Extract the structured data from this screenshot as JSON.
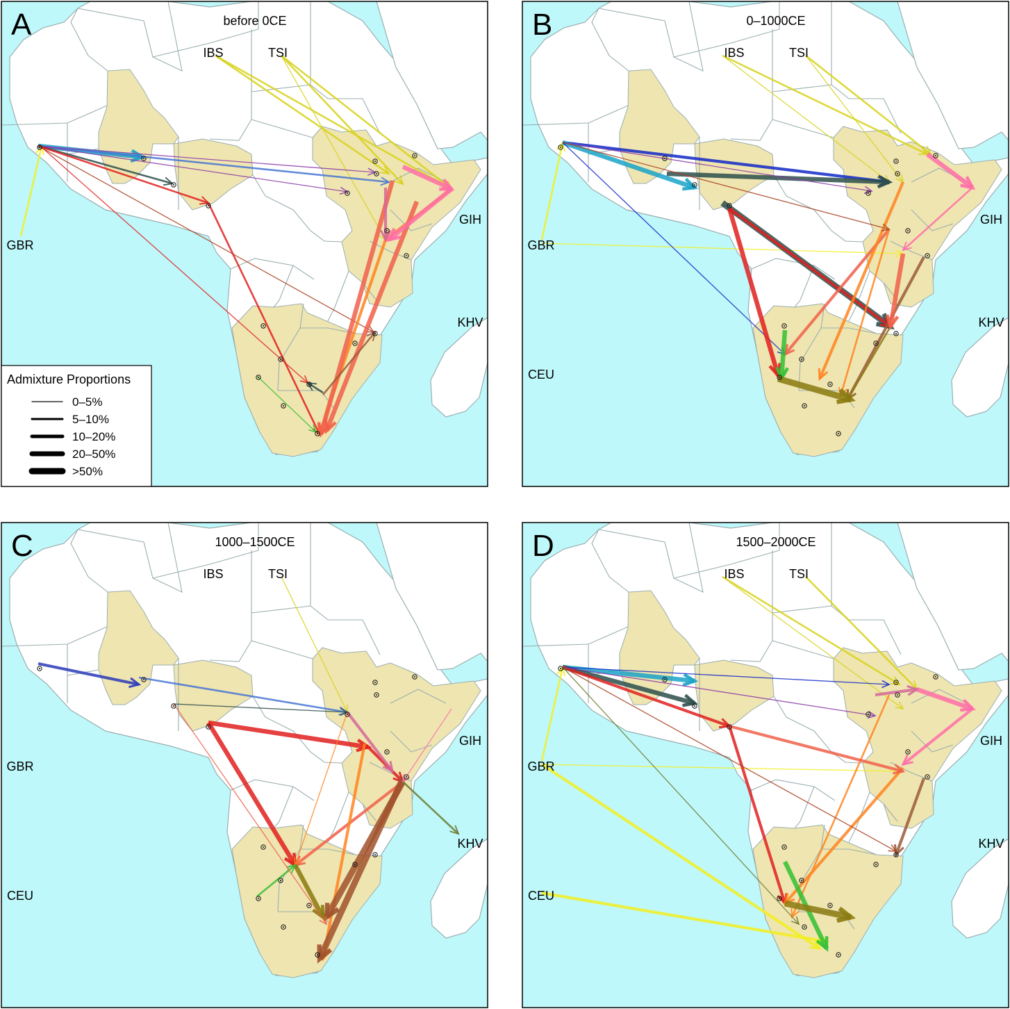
{
  "colors": {
    "sea": "#bff8fa",
    "land": "#ffffff",
    "sampled": "#efe5b0",
    "border": "#9aaeb0"
  },
  "panels": [
    {
      "letter": "A",
      "period": "before 0CE",
      "refs": [
        "IBS",
        "TSI",
        "GIH",
        "GBR",
        "KHV"
      ],
      "flows": [
        {
          "color": "#d7d21a",
          "weight": 2
        },
        {
          "color": "#d7d21a",
          "weight": 2
        },
        {
          "color": "#d7d21a",
          "weight": 2
        },
        {
          "color": "#d7d21a",
          "weight": 2
        },
        {
          "color": "#d7d21a",
          "weight": 1
        },
        {
          "color": "#f2ee1e",
          "weight": 2
        },
        {
          "color": "#1aa3c8",
          "weight": 4
        },
        {
          "color": "#4876d4",
          "weight": 2
        },
        {
          "color": "#8b3aa8",
          "weight": 1
        },
        {
          "color": "#8b3aa8",
          "weight": 1
        },
        {
          "color": "#2d4f4b",
          "weight": 2
        },
        {
          "color": "#e1201e",
          "weight": 2
        },
        {
          "color": "#a8401e",
          "weight": 1
        },
        {
          "color": "#e1201e",
          "weight": 2
        },
        {
          "color": "#e1201e",
          "weight": 1
        },
        {
          "color": "#ff8420",
          "weight": 3
        },
        {
          "color": "#ff8420",
          "weight": 3
        },
        {
          "color": "#f0604a",
          "weight": 4
        },
        {
          "color": "#f0604a",
          "weight": 4
        },
        {
          "color": "#9a5a3a",
          "weight": 2
        },
        {
          "color": "#ff6ea8",
          "weight": 4
        },
        {
          "color": "#ff6ea8",
          "weight": 4
        },
        {
          "color": "#d4689a",
          "weight": 3
        },
        {
          "color": "#2d4f4b",
          "weight": 2
        },
        {
          "color": "#32c032",
          "weight": 1
        }
      ]
    },
    {
      "letter": "B",
      "period": "0–1000CE",
      "refs": [
        "IBS",
        "TSI",
        "GIH",
        "GBR",
        "KHV",
        "CEU"
      ],
      "flows": [
        {
          "color": "#d7d21a",
          "weight": 2
        },
        {
          "color": "#d7d21a",
          "weight": 2
        },
        {
          "color": "#d7d21a",
          "weight": 1
        },
        {
          "color": "#d7d21a",
          "weight": 1
        },
        {
          "color": "#f2ee1e",
          "weight": 2
        },
        {
          "color": "#f2ee1e",
          "weight": 1
        },
        {
          "color": "#1028c8",
          "weight": 3
        },
        {
          "color": "#1aa3c8",
          "weight": 4
        },
        {
          "color": "#2d4f4b",
          "weight": 4
        },
        {
          "color": "#2d4f4b",
          "weight": 5
        },
        {
          "color": "#1028c8",
          "weight": 1
        },
        {
          "color": "#e1201e",
          "weight": 4
        },
        {
          "color": "#e1201e",
          "weight": 3
        },
        {
          "color": "#f0604a",
          "weight": 3
        },
        {
          "color": "#ff8420",
          "weight": 3
        },
        {
          "color": "#ff8420",
          "weight": 2
        },
        {
          "color": "#ff6ea8",
          "weight": 4
        },
        {
          "color": "#ff6ea8",
          "weight": 2
        },
        {
          "color": "#9a5a3a",
          "weight": 3
        },
        {
          "color": "#32c032",
          "weight": 4
        },
        {
          "color": "#8a7a10",
          "weight": 5
        },
        {
          "color": "#8a7a10",
          "weight": 2
        },
        {
          "color": "#8b3aa8",
          "weight": 1
        },
        {
          "color": "#a8401e",
          "weight": 1
        },
        {
          "color": "#f0604a",
          "weight": 4
        }
      ]
    },
    {
      "letter": "C",
      "period": "1000–1500CE",
      "refs": [
        "IBS",
        "TSI",
        "GIH",
        "GBR",
        "KHV",
        "CEU"
      ],
      "flows": [
        {
          "color": "#d7d21a",
          "weight": 1
        },
        {
          "color": "#2a3ab8",
          "weight": 3
        },
        {
          "color": "#4876d4",
          "weight": 2
        },
        {
          "color": "#2d4f4b",
          "weight": 1
        },
        {
          "color": "#e1201e",
          "weight": 4
        },
        {
          "color": "#e1201e",
          "weight": 4
        },
        {
          "color": "#e1201e",
          "weight": 3
        },
        {
          "color": "#f0604a",
          "weight": 3
        },
        {
          "color": "#ff8420",
          "weight": 1
        },
        {
          "color": "#ff8420",
          "weight": 3
        },
        {
          "color": "#a0522d",
          "weight": 5
        },
        {
          "color": "#a0522d",
          "weight": 5
        },
        {
          "color": "#8a7a10",
          "weight": 4
        },
        {
          "color": "#6a7a30",
          "weight": 2
        },
        {
          "color": "#d4689a",
          "weight": 3
        },
        {
          "color": "#ff6ea8",
          "weight": 1
        },
        {
          "color": "#32c032",
          "weight": 2
        },
        {
          "color": "#f0604a",
          "weight": 1
        }
      ]
    },
    {
      "letter": "D",
      "period": "1500–2000CE",
      "refs": [
        "IBS",
        "TSI",
        "GIH",
        "GBR",
        "KHV",
        "CEU"
      ],
      "flows": [
        {
          "color": "#d7d21a",
          "weight": 2
        },
        {
          "color": "#d7d21a",
          "weight": 2
        },
        {
          "color": "#d7d21a",
          "weight": 1
        },
        {
          "color": "#f2ee1e",
          "weight": 2
        },
        {
          "color": "#f2ee1e",
          "weight": 3
        },
        {
          "color": "#f2ee1e",
          "weight": 1
        },
        {
          "color": "#f2ee1e",
          "weight": 3
        },
        {
          "color": "#1aa3c8",
          "weight": 4
        },
        {
          "color": "#2d4f4b",
          "weight": 4
        },
        {
          "color": "#1028c8",
          "weight": 1
        },
        {
          "color": "#e1201e",
          "weight": 3
        },
        {
          "color": "#e1201e",
          "weight": 3
        },
        {
          "color": "#ff8420",
          "weight": 3
        },
        {
          "color": "#ff8420",
          "weight": 2
        },
        {
          "color": "#ff6ea8",
          "weight": 4
        },
        {
          "color": "#ff6ea8",
          "weight": 3
        },
        {
          "color": "#d4689a",
          "weight": 3
        },
        {
          "color": "#9a5a3a",
          "weight": 3
        },
        {
          "color": "#32c032",
          "weight": 4
        },
        {
          "color": "#8a7a10",
          "weight": 5
        },
        {
          "color": "#8b3aa8",
          "weight": 1
        },
        {
          "color": "#a8401e",
          "weight": 1
        },
        {
          "color": "#6a7a30",
          "weight": 1
        },
        {
          "color": "#f0604a",
          "weight": 3
        }
      ]
    }
  ],
  "legend": {
    "title": "Admixture Proportions",
    "items": [
      "0–5%",
      "5–10%",
      "10–20%",
      "20–50%",
      ">50%"
    ]
  }
}
